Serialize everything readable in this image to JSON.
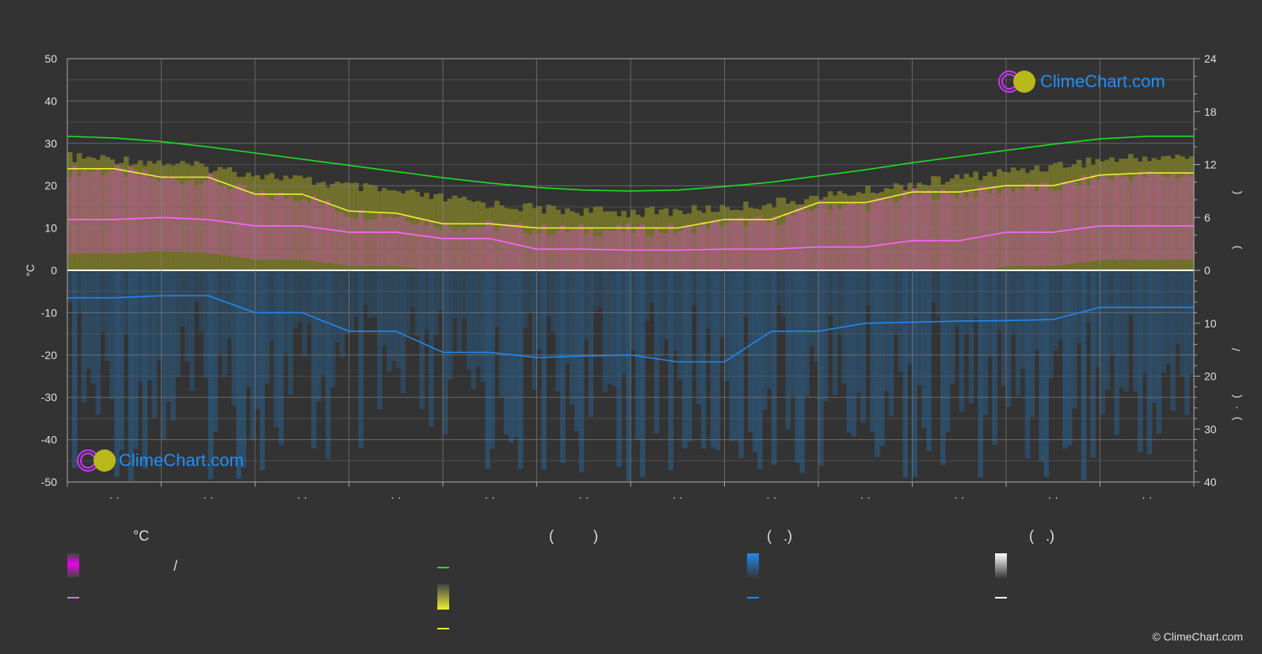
{
  "chart_data": {
    "type": "area",
    "left_axis": {
      "label": "°C",
      "ylim": [
        -50,
        50
      ],
      "ticks": [
        "50",
        "40",
        "30",
        "20",
        "10",
        "0",
        "-10",
        "-20",
        "-30",
        "-40",
        "-50"
      ]
    },
    "right_axis_top": {
      "ylim": [
        0,
        24
      ],
      "ticks": [
        "24",
        "18",
        "12",
        "6",
        "0"
      ],
      "label_glyphs": [
        "(",
        ")"
      ]
    },
    "right_axis_bottom": {
      "ylim": [
        0,
        40
      ],
      "ticks": [
        "10",
        "20",
        "30",
        "40"
      ],
      "label_glyphs": [
        "/",
        "(",
        "·",
        ")"
      ]
    },
    "x_ticks": [
      "· ·",
      "· ·",
      "· ·",
      "· ·",
      "· ·",
      "· ·",
      "· ·",
      "· ·",
      "· ·",
      "· ·",
      "· ·",
      "· ·"
    ],
    "x": [
      0,
      0.5,
      1,
      1.5,
      2,
      2.5,
      3,
      3.5,
      4,
      4.5,
      5,
      5.5,
      6,
      6.5,
      7,
      7.5,
      8,
      8.5,
      9,
      9.5,
      10,
      10.5,
      11,
      11.5,
      12
    ],
    "series": [
      {
        "color": "#22dd22",
        "axis": "right_top",
        "values": [
          15.2,
          15.0,
          14.6,
          14.0,
          13.3,
          12.6,
          11.9,
          11.2,
          10.5,
          9.9,
          9.4,
          9.1,
          9.0,
          9.1,
          9.5,
          10.0,
          10.7,
          11.4,
          12.2,
          12.9,
          13.6,
          14.3,
          14.9,
          15.2,
          15.2
        ]
      },
      {
        "color": "#eeee33",
        "axis": "left",
        "values": [
          24,
          24,
          22,
          22,
          18,
          18,
          14,
          13.5,
          11,
          11,
          10,
          10,
          10,
          10,
          12,
          12,
          16,
          16,
          18.5,
          18.5,
          20,
          20,
          22.5,
          23,
          23
        ]
      },
      {
        "color": "#ff66ff",
        "axis": "left",
        "values": [
          12,
          12,
          12.5,
          12,
          10.5,
          10.5,
          9,
          9,
          7.5,
          7.5,
          5,
          5,
          4.8,
          4.8,
          5,
          5,
          5.5,
          5.5,
          7,
          7,
          9,
          9,
          10.5,
          10.5,
          10.5
        ]
      },
      {
        "color": "#2288ee",
        "axis": "right_bottom",
        "values": [
          5.2,
          5.2,
          4.8,
          4.8,
          8,
          8,
          11.5,
          11.5,
          15.5,
          15.5,
          16.5,
          16.2,
          16,
          17.3,
          17.3,
          11.5,
          11.5,
          10,
          9.8,
          9.6,
          9.5,
          9.3,
          7,
          7,
          7
        ]
      }
    ],
    "grid": true
  },
  "legend": {
    "col1": {
      "head": "°C",
      "row1": "/",
      "row2": ""
    },
    "col2": {
      "head": "(          )",
      "row1": "",
      "row2": "",
      "row3": ""
    },
    "col3": {
      "head": "(   .)",
      "row1": "",
      "row2": ""
    },
    "col4": {
      "head": "(   .)",
      "row1": "",
      "row2": ""
    }
  },
  "brand": {
    "name": "ClimeChart.com",
    "copyright": "© ClimeChart.com"
  },
  "colors": {
    "green": "#22dd22",
    "yellow": "#eeee33",
    "pink": "#ff66ff",
    "blue": "#2288ee",
    "magenta": "#ee00ee"
  }
}
